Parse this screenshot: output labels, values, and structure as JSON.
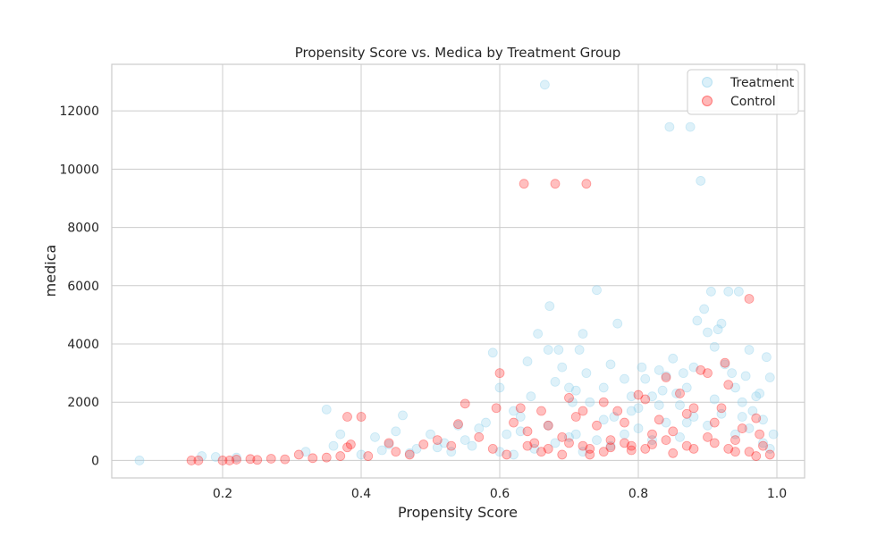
{
  "chart_data": {
    "type": "scatter",
    "title": "Propensity Score vs. Medica by Treatment Group",
    "xlabel": "Propensity Score",
    "ylabel": "medica",
    "xlim": [
      0.04,
      1.04
    ],
    "ylim": [
      -600,
      13600
    ],
    "xticks": [
      0.2,
      0.4,
      0.6,
      0.8,
      1.0
    ],
    "xtick_labels": [
      "0.2",
      "0.4",
      "0.6",
      "0.8",
      "1.0"
    ],
    "yticks": [
      0,
      2000,
      4000,
      6000,
      8000,
      10000,
      12000
    ],
    "ytick_labels": [
      "0",
      "2000",
      "4000",
      "6000",
      "8000",
      "10000",
      "12000"
    ],
    "grid": true,
    "legend_position": "top-right",
    "series": [
      {
        "name": "Treatment",
        "color": "#87CEEB",
        "points": [
          [
            0.08,
            0
          ],
          [
            0.17,
            150
          ],
          [
            0.19,
            120
          ],
          [
            0.22,
            100
          ],
          [
            0.32,
            300
          ],
          [
            0.35,
            1750
          ],
          [
            0.36,
            500
          ],
          [
            0.37,
            900
          ],
          [
            0.4,
            200
          ],
          [
            0.42,
            800
          ],
          [
            0.44,
            550
          ],
          [
            0.45,
            1000
          ],
          [
            0.46,
            1550
          ],
          [
            0.48,
            400
          ],
          [
            0.5,
            900
          ],
          [
            0.52,
            600
          ],
          [
            0.54,
            1200
          ],
          [
            0.55,
            700
          ],
          [
            0.57,
            1100
          ],
          [
            0.58,
            1300
          ],
          [
            0.59,
            3700
          ],
          [
            0.6,
            2500
          ],
          [
            0.61,
            900
          ],
          [
            0.62,
            1700
          ],
          [
            0.63,
            1500
          ],
          [
            0.64,
            3400
          ],
          [
            0.645,
            2200
          ],
          [
            0.655,
            4350
          ],
          [
            0.665,
            12900
          ],
          [
            0.67,
            3800
          ],
          [
            0.672,
            5300
          ],
          [
            0.68,
            2700
          ],
          [
            0.685,
            3800
          ],
          [
            0.69,
            3200
          ],
          [
            0.7,
            2500
          ],
          [
            0.705,
            2000
          ],
          [
            0.71,
            2400
          ],
          [
            0.715,
            3800
          ],
          [
            0.72,
            4350
          ],
          [
            0.725,
            3000
          ],
          [
            0.73,
            2000
          ],
          [
            0.74,
            5850
          ],
          [
            0.75,
            2500
          ],
          [
            0.76,
            3300
          ],
          [
            0.765,
            1500
          ],
          [
            0.77,
            4700
          ],
          [
            0.78,
            2800
          ],
          [
            0.79,
            2200
          ],
          [
            0.8,
            1800
          ],
          [
            0.805,
            3200
          ],
          [
            0.81,
            2800
          ],
          [
            0.82,
            2200
          ],
          [
            0.83,
            3100
          ],
          [
            0.835,
            2400
          ],
          [
            0.84,
            2900
          ],
          [
            0.845,
            11450
          ],
          [
            0.85,
            3500
          ],
          [
            0.855,
            2300
          ],
          [
            0.86,
            1900
          ],
          [
            0.865,
            3000
          ],
          [
            0.87,
            2500
          ],
          [
            0.875,
            11450
          ],
          [
            0.88,
            3200
          ],
          [
            0.885,
            4800
          ],
          [
            0.89,
            9600
          ],
          [
            0.895,
            5200
          ],
          [
            0.9,
            4400
          ],
          [
            0.905,
            5800
          ],
          [
            0.91,
            3900
          ],
          [
            0.915,
            4500
          ],
          [
            0.92,
            4700
          ],
          [
            0.925,
            3300
          ],
          [
            0.93,
            5800
          ],
          [
            0.935,
            3000
          ],
          [
            0.94,
            2500
          ],
          [
            0.945,
            5800
          ],
          [
            0.95,
            2000
          ],
          [
            0.955,
            2900
          ],
          [
            0.96,
            3800
          ],
          [
            0.965,
            1700
          ],
          [
            0.97,
            2200
          ],
          [
            0.975,
            2300
          ],
          [
            0.98,
            1400
          ],
          [
            0.985,
            3550
          ],
          [
            0.99,
            2850
          ],
          [
            0.995,
            900
          ],
          [
            0.6,
            300
          ],
          [
            0.62,
            200
          ],
          [
            0.65,
            400
          ],
          [
            0.68,
            600
          ],
          [
            0.7,
            800
          ],
          [
            0.72,
            300
          ],
          [
            0.74,
            700
          ],
          [
            0.76,
            500
          ],
          [
            0.78,
            900
          ],
          [
            0.8,
            1100
          ],
          [
            0.82,
            700
          ],
          [
            0.84,
            1300
          ],
          [
            0.86,
            800
          ],
          [
            0.88,
            1500
          ],
          [
            0.9,
            1200
          ],
          [
            0.92,
            1600
          ],
          [
            0.94,
            900
          ],
          [
            0.96,
            1100
          ],
          [
            0.98,
            600
          ],
          [
            0.63,
            1000
          ],
          [
            0.67,
            1200
          ],
          [
            0.71,
            900
          ],
          [
            0.75,
            1400
          ],
          [
            0.79,
            1700
          ],
          [
            0.83,
            1900
          ],
          [
            0.87,
            1300
          ],
          [
            0.91,
            2100
          ],
          [
            0.95,
            1500
          ],
          [
            0.99,
            400
          ],
          [
            0.56,
            500
          ],
          [
            0.53,
            300
          ],
          [
            0.51,
            450
          ],
          [
            0.47,
            250
          ],
          [
            0.43,
            350
          ]
        ]
      },
      {
        "name": "Control",
        "color": "#FF0000",
        "points": [
          [
            0.155,
            0
          ],
          [
            0.165,
            0
          ],
          [
            0.2,
            0
          ],
          [
            0.21,
            0
          ],
          [
            0.22,
            30
          ],
          [
            0.24,
            50
          ],
          [
            0.25,
            20
          ],
          [
            0.27,
            60
          ],
          [
            0.29,
            40
          ],
          [
            0.31,
            200
          ],
          [
            0.33,
            80
          ],
          [
            0.35,
            100
          ],
          [
            0.37,
            150
          ],
          [
            0.38,
            1500
          ],
          [
            0.38,
            450
          ],
          [
            0.385,
            550
          ],
          [
            0.4,
            1500
          ],
          [
            0.41,
            150
          ],
          [
            0.44,
            600
          ],
          [
            0.45,
            300
          ],
          [
            0.47,
            200
          ],
          [
            0.49,
            550
          ],
          [
            0.51,
            700
          ],
          [
            0.53,
            500
          ],
          [
            0.54,
            1250
          ],
          [
            0.55,
            1950
          ],
          [
            0.57,
            800
          ],
          [
            0.59,
            400
          ],
          [
            0.595,
            1800
          ],
          [
            0.6,
            3000
          ],
          [
            0.62,
            1300
          ],
          [
            0.63,
            1800
          ],
          [
            0.635,
            9500
          ],
          [
            0.64,
            1000
          ],
          [
            0.65,
            600
          ],
          [
            0.66,
            1700
          ],
          [
            0.67,
            1200
          ],
          [
            0.68,
            9500
          ],
          [
            0.69,
            800
          ],
          [
            0.7,
            2150
          ],
          [
            0.71,
            1500
          ],
          [
            0.72,
            1700
          ],
          [
            0.725,
            9500
          ],
          [
            0.73,
            400
          ],
          [
            0.74,
            1200
          ],
          [
            0.75,
            2000
          ],
          [
            0.76,
            700
          ],
          [
            0.77,
            1700
          ],
          [
            0.78,
            1300
          ],
          [
            0.79,
            500
          ],
          [
            0.8,
            2250
          ],
          [
            0.81,
            2100
          ],
          [
            0.82,
            900
          ],
          [
            0.83,
            1400
          ],
          [
            0.84,
            2850
          ],
          [
            0.85,
            1000
          ],
          [
            0.86,
            2300
          ],
          [
            0.87,
            1600
          ],
          [
            0.88,
            1800
          ],
          [
            0.89,
            3100
          ],
          [
            0.9,
            3000
          ],
          [
            0.91,
            1300
          ],
          [
            0.92,
            1800
          ],
          [
            0.925,
            3350
          ],
          [
            0.93,
            2600
          ],
          [
            0.94,
            700
          ],
          [
            0.95,
            1100
          ],
          [
            0.96,
            5550
          ],
          [
            0.97,
            1450
          ],
          [
            0.975,
            900
          ],
          [
            0.98,
            500
          ],
          [
            0.99,
            200
          ],
          [
            0.66,
            300
          ],
          [
            0.69,
            200
          ],
          [
            0.72,
            500
          ],
          [
            0.75,
            300
          ],
          [
            0.78,
            600
          ],
          [
            0.81,
            400
          ],
          [
            0.84,
            700
          ],
          [
            0.87,
            500
          ],
          [
            0.9,
            800
          ],
          [
            0.93,
            400
          ],
          [
            0.96,
            300
          ],
          [
            0.61,
            200
          ],
          [
            0.64,
            500
          ],
          [
            0.67,
            400
          ],
          [
            0.7,
            600
          ],
          [
            0.73,
            200
          ],
          [
            0.76,
            450
          ],
          [
            0.79,
            350
          ],
          [
            0.82,
            550
          ],
          [
            0.85,
            250
          ],
          [
            0.88,
            400
          ],
          [
            0.91,
            600
          ],
          [
            0.94,
            300
          ],
          [
            0.97,
            150
          ]
        ]
      }
    ]
  }
}
